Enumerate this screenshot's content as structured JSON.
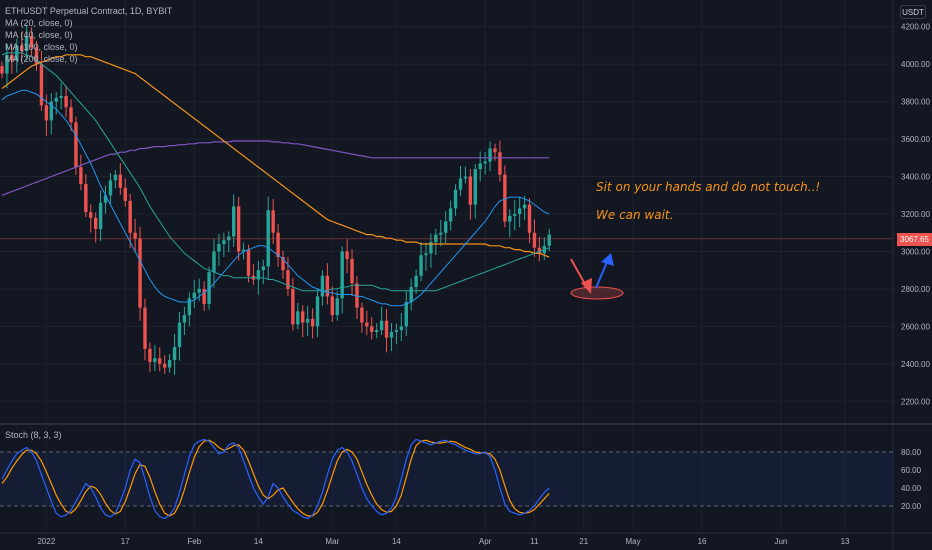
{
  "header": {
    "symbol": "ETHUSDT Perpetual Contract, 1D, BYBIT",
    "ma_labels": [
      "MA (20, close, 0)",
      "MA (40, close, 0)",
      "MA (100, close, 0)",
      "MA (200, close, 0)"
    ],
    "currency": "USDT"
  },
  "annotations": {
    "line1": "Sit on your hands and do not touch..!",
    "line2": "We can wait."
  },
  "price_tag": "3067.65",
  "oscillator": {
    "title": "Stoch (8, 3, 3)"
  },
  "colors": {
    "background": "#131722",
    "up": "#26a69a",
    "down": "#ef5350",
    "ma20": "#2196f3",
    "ma40": "#26a69a",
    "ma100": "#f7931a",
    "ma200": "#7e57c2",
    "stoch_k": "#2962ff",
    "stoch_d": "#ff9800",
    "annotation": "#f7931a"
  },
  "chart_data": {
    "type": "candlestick",
    "y_ticks": [
      "4200.00",
      "4000.00",
      "3800.00",
      "3600.00",
      "3400.00",
      "3200.00",
      "3000.00",
      "2800.00",
      "2600.00",
      "2400.00",
      "2200.00"
    ],
    "ylim": [
      2100,
      4300
    ],
    "x_ticks": [
      {
        "i": 9,
        "label": "2022"
      },
      {
        "i": 25,
        "label": "17"
      },
      {
        "i": 39,
        "label": "Feb"
      },
      {
        "i": 52,
        "label": "14"
      },
      {
        "i": 67,
        "label": "Mar"
      },
      {
        "i": 80,
        "label": "14"
      },
      {
        "i": 98,
        "label": "Apr"
      },
      {
        "i": 108,
        "label": "11"
      },
      {
        "i": 118,
        "label": "21"
      },
      {
        "i": 128,
        "label": "May"
      },
      {
        "i": 142,
        "label": "16"
      },
      {
        "i": 158,
        "label": "Jun"
      },
      {
        "i": 171,
        "label": "13"
      }
    ],
    "closes": [
      3950,
      4050,
      4020,
      4100,
      4070,
      4150,
      4090,
      4000,
      3780,
      3700,
      3800,
      3820,
      3830,
      3770,
      3690,
      3450,
      3360,
      3210,
      3180,
      3120,
      3260,
      3300,
      3380,
      3410,
      3340,
      3270,
      3100,
      3070,
      2700,
      2480,
      2410,
      2430,
      2400,
      2380,
      2420,
      2490,
      2620,
      2660,
      2750,
      2780,
      2800,
      2720,
      2890,
      3000,
      3040,
      3060,
      3080,
      3240,
      3000,
      3010,
      2870,
      2850,
      2900,
      2920,
      3220,
      3100,
      2970,
      2900,
      2800,
      2610,
      2680,
      2620,
      2640,
      2600,
      2760,
      2870,
      2760,
      2660,
      2750,
      3000,
      2960,
      2830,
      2700,
      2620,
      2600,
      2570,
      2580,
      2630,
      2540,
      2570,
      2580,
      2600,
      2730,
      2810,
      2870,
      2980,
      2990,
      3050,
      3090,
      3100,
      3160,
      3230,
      3330,
      3390,
      3400,
      3250,
      3440,
      3470,
      3480,
      3550,
      3530,
      3410,
      3160,
      3190,
      3200,
      3230,
      3250,
      3100,
      3020,
      2990,
      3030,
      3090
    ],
    "ma20_start": 3810,
    "ma20": [
      3810,
      3830,
      3840,
      3850,
      3860,
      3860,
      3850,
      3840,
      3820,
      3800,
      3780,
      3760,
      3730,
      3700,
      3660,
      3620,
      3570,
      3520,
      3470,
      3410,
      3350,
      3300,
      3250,
      3200,
      3150,
      3100,
      3050,
      3000,
      2950,
      2900,
      2850,
      2810,
      2780,
      2760,
      2750,
      2740,
      2730,
      2730,
      2730,
      2740,
      2760,
      2780,
      2800,
      2830,
      2860,
      2890,
      2920,
      2950,
      2980,
      3000,
      3010,
      3020,
      3030,
      3030,
      3020,
      3000,
      2980,
      2960,
      2930,
      2900,
      2870,
      2850,
      2830,
      2810,
      2800,
      2790,
      2780,
      2780,
      2770,
      2770,
      2770,
      2770,
      2760,
      2760,
      2750,
      2740,
      2730,
      2720,
      2720,
      2710,
      2710,
      2710,
      2720,
      2730,
      2750,
      2770,
      2800,
      2830,
      2860,
      2890,
      2920,
      2950,
      2980,
      3010,
      3040,
      3070,
      3100,
      3130,
      3160,
      3200,
      3240,
      3270,
      3280,
      3290,
      3290,
      3290,
      3280,
      3270,
      3250,
      3230,
      3210,
      3200
    ],
    "ma40": [
      4050,
      4060,
      4060,
      4060,
      4060,
      4050,
      4040,
      4020,
      4000,
      3980,
      3960,
      3940,
      3910,
      3880,
      3850,
      3820,
      3790,
      3760,
      3730,
      3700,
      3660,
      3620,
      3580,
      3540,
      3500,
      3460,
      3420,
      3380,
      3340,
      3290,
      3240,
      3200,
      3160,
      3120,
      3080,
      3050,
      3020,
      2990,
      2970,
      2950,
      2930,
      2910,
      2900,
      2890,
      2880,
      2870,
      2870,
      2860,
      2860,
      2860,
      2860,
      2860,
      2860,
      2860,
      2850,
      2850,
      2840,
      2830,
      2820,
      2810,
      2800,
      2790,
      2790,
      2790,
      2790,
      2790,
      2790,
      2800,
      2800,
      2810,
      2810,
      2820,
      2820,
      2820,
      2820,
      2820,
      2810,
      2800,
      2800,
      2790,
      2790,
      2790,
      2790,
      2790,
      2790,
      2790,
      2790,
      2790,
      2790,
      2800,
      2810,
      2820,
      2830,
      2840,
      2850,
      2860,
      2870,
      2880,
      2890,
      2900,
      2910,
      2920,
      2930,
      2940,
      2950,
      2960,
      2970,
      2980,
      2990,
      3000,
      3010,
      3020
    ],
    "ma100": [
      3870,
      3890,
      3910,
      3930,
      3950,
      3970,
      3990,
      4000,
      4010,
      4020,
      4030,
      4040,
      4040,
      4050,
      4050,
      4050,
      4050,
      4040,
      4040,
      4030,
      4020,
      4010,
      4000,
      3990,
      3980,
      3970,
      3960,
      3950,
      3930,
      3910,
      3890,
      3870,
      3850,
      3830,
      3810,
      3790,
      3770,
      3750,
      3730,
      3710,
      3690,
      3670,
      3650,
      3630,
      3610,
      3590,
      3570,
      3550,
      3530,
      3510,
      3490,
      3470,
      3450,
      3430,
      3410,
      3390,
      3370,
      3350,
      3330,
      3310,
      3290,
      3270,
      3250,
      3230,
      3210,
      3190,
      3170,
      3160,
      3150,
      3140,
      3130,
      3120,
      3110,
      3100,
      3090,
      3090,
      3080,
      3080,
      3070,
      3070,
      3060,
      3060,
      3050,
      3050,
      3050,
      3040,
      3040,
      3040,
      3040,
      3040,
      3040,
      3040,
      3040,
      3040,
      3040,
      3040,
      3040,
      3040,
      3040,
      3030,
      3030,
      3030,
      3020,
      3020,
      3010,
      3010,
      3000,
      3000,
      2990,
      2990,
      2980,
      2970
    ],
    "ma200": [
      3300,
      3310,
      3320,
      3330,
      3340,
      3350,
      3360,
      3370,
      3380,
      3390,
      3400,
      3410,
      3420,
      3430,
      3440,
      3450,
      3460,
      3470,
      3480,
      3490,
      3500,
      3510,
      3520,
      3520,
      3530,
      3530,
      3540,
      3540,
      3550,
      3550,
      3555,
      3560,
      3560,
      3560,
      3565,
      3565,
      3570,
      3570,
      3575,
      3575,
      3580,
      3580,
      3580,
      3585,
      3585,
      3585,
      3585,
      3590,
      3590,
      3590,
      3590,
      3590,
      3590,
      3590,
      3590,
      3585,
      3585,
      3580,
      3580,
      3575,
      3575,
      3570,
      3565,
      3560,
      3555,
      3550,
      3545,
      3540,
      3535,
      3530,
      3525,
      3520,
      3515,
      3510,
      3505,
      3500,
      3500,
      3500,
      3500,
      3500,
      3500,
      3500,
      3500,
      3500,
      3500,
      3500,
      3500,
      3500,
      3500,
      3500,
      3500,
      3500,
      3500,
      3500,
      3500,
      3500,
      3500,
      3500,
      3500,
      3500,
      3500,
      3500,
      3500,
      3500,
      3500,
      3500,
      3500,
      3500,
      3500,
      3500,
      3500,
      3500
    ],
    "stoch_ticks": [
      "80.00",
      "60.00",
      "40.00",
      "20.00"
    ],
    "stoch_levels": [
      80,
      20
    ],
    "stoch_k": [
      50,
      60,
      70,
      78,
      82,
      85,
      80,
      70,
      55,
      40,
      25,
      12,
      8,
      10,
      15,
      25,
      35,
      45,
      40,
      30,
      18,
      10,
      8,
      12,
      25,
      40,
      60,
      72,
      68,
      50,
      30,
      15,
      8,
      6,
      10,
      18,
      35,
      55,
      75,
      88,
      92,
      94,
      92,
      85,
      78,
      80,
      88,
      90,
      85,
      70,
      55,
      40,
      30,
      22,
      30,
      45,
      40,
      30,
      22,
      15,
      12,
      8,
      6,
      10,
      20,
      35,
      55,
      72,
      82,
      85,
      80,
      70,
      55,
      40,
      28,
      20,
      14,
      10,
      12,
      18,
      30,
      50,
      72,
      88,
      94,
      92,
      90,
      88,
      90,
      92,
      93,
      90,
      88,
      85,
      82,
      80,
      78,
      78,
      80,
      75,
      60,
      40,
      22,
      14,
      12,
      10,
      12,
      15,
      20,
      28,
      35,
      40
    ],
    "stoch_d": [
      45,
      52,
      62,
      70,
      77,
      82,
      82,
      78,
      70,
      58,
      45,
      32,
      22,
      14,
      12,
      17,
      26,
      36,
      42,
      40,
      33,
      23,
      15,
      11,
      14,
      25,
      40,
      56,
      66,
      64,
      52,
      36,
      22,
      12,
      9,
      12,
      22,
      38,
      57,
      74,
      86,
      92,
      93,
      90,
      85,
      82,
      84,
      87,
      88,
      82,
      70,
      56,
      42,
      32,
      28,
      32,
      38,
      40,
      32,
      24,
      17,
      12,
      9,
      9,
      13,
      22,
      37,
      54,
      70,
      80,
      83,
      80,
      72,
      58,
      44,
      32,
      22,
      16,
      13,
      14,
      20,
      32,
      52,
      72,
      87,
      92,
      93,
      91,
      90,
      90,
      91,
      92,
      91,
      88,
      85,
      83,
      80,
      79,
      79,
      78,
      72,
      60,
      42,
      26,
      17,
      13,
      12,
      13,
      16,
      22,
      28,
      34
    ]
  }
}
